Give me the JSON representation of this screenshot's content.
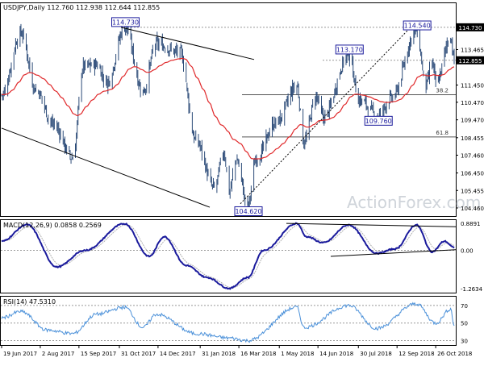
{
  "colors": {
    "background": "#ffffff",
    "candles": "#2c4b78",
    "ema": "#e0282a",
    "trendline": "#000000",
    "fibline": "#555555",
    "macd": "#1a1a9c",
    "signal": "#b0b0b0",
    "rsi": "#4a90d9",
    "grid": "#9a9a9a",
    "price_marker_bg": "#000000"
  },
  "watermark": "ActionForex.com",
  "chart_data": [
    {
      "type": "candlestick",
      "title": "USDJPY,Daily  112.760 112.938 112.644 112.855",
      "symbol": "USDJPY",
      "timeframe": "Daily",
      "ohlc_last": {
        "open": 112.76,
        "high": 112.938,
        "low": 112.644,
        "close": 112.855
      },
      "ylim": [
        104.0,
        116.1
      ],
      "yticks": [
        "114.730",
        "113.465",
        "112.855",
        "111.450",
        "110.470",
        "109.470",
        "108.455",
        "107.460",
        "106.450",
        "105.455",
        "104.460"
      ],
      "current_price": "112.855",
      "current_high_marker": "114.730",
      "annotations": [
        {
          "label": "114.730",
          "value": 114.73,
          "date": "2017-11-06"
        },
        {
          "label": "104.620",
          "value": 104.62,
          "date": "2018-03-26"
        },
        {
          "label": "113.170",
          "value": 113.17,
          "date": "2018-07-19"
        },
        {
          "label": "109.760",
          "value": 109.76,
          "date": "2018-08-21"
        },
        {
          "label": "114.540",
          "value": 114.54,
          "date": "2018-10-04"
        }
      ],
      "fib_levels": [
        {
          "label": "38.2",
          "value": 110.9
        },
        {
          "label": "61.8",
          "value": 108.5
        }
      ],
      "key_points": [
        [
          "2017-06-19",
          110.9
        ],
        [
          "2017-07-11",
          114.4
        ],
        [
          "2017-07-28",
          111.2
        ],
        [
          "2017-08-17",
          109.2
        ],
        [
          "2017-09-08",
          107.3
        ],
        [
          "2017-09-20",
          112.5
        ],
        [
          "2017-10-05",
          112.6
        ],
        [
          "2017-10-17",
          111.6
        ],
        [
          "2017-11-06",
          114.73
        ],
        [
          "2017-11-27",
          111.1
        ],
        [
          "2017-12-12",
          113.8
        ],
        [
          "2018-01-08",
          113.3
        ],
        [
          "2018-01-26",
          108.3
        ],
        [
          "2018-02-16",
          105.6
        ],
        [
          "2018-02-27",
          107.6
        ],
        [
          "2018-03-05",
          105.4
        ],
        [
          "2018-03-13",
          107.2
        ],
        [
          "2018-03-26",
          104.62
        ],
        [
          "2018-04-05",
          107.3
        ],
        [
          "2018-04-27",
          109.3
        ],
        [
          "2018-05-21",
          111.4
        ],
        [
          "2018-05-29",
          108.2
        ],
        [
          "2018-06-12",
          110.8
        ],
        [
          "2018-06-20",
          109.6
        ],
        [
          "2018-07-19",
          113.17
        ],
        [
          "2018-07-31",
          110.6
        ],
        [
          "2018-08-21",
          109.76
        ],
        [
          "2018-09-06",
          110.7
        ],
        [
          "2018-10-04",
          114.54
        ],
        [
          "2018-10-15",
          111.4
        ],
        [
          "2018-10-22",
          112.8
        ],
        [
          "2018-10-26",
          111.5
        ],
        [
          "2018-11-12",
          114.2
        ],
        [
          "2018-11-16",
          112.855
        ]
      ]
    },
    {
      "type": "line",
      "title": "MACD(12,26,9)  0.0858  0.2569",
      "name": "MACD(12,26,9)",
      "values_last": {
        "macd": 0.0858,
        "signal": 0.2569
      },
      "ylim": [
        -1.4,
        1.0
      ],
      "yticks": [
        "0.8891",
        "0.00",
        "-1.2634"
      ],
      "key_points": [
        [
          "2017-06-19",
          0.3
        ],
        [
          "2017-07-18",
          0.85
        ],
        [
          "2017-08-21",
          -0.55
        ],
        [
          "2017-09-22",
          0.0
        ],
        [
          "2017-11-06",
          0.88
        ],
        [
          "2017-12-04",
          -0.2
        ],
        [
          "2017-12-21",
          0.45
        ],
        [
          "2018-01-15",
          -0.5
        ],
        [
          "2018-02-08",
          -0.9
        ],
        [
          "2018-03-05",
          -1.26
        ],
        [
          "2018-03-26",
          -0.9
        ],
        [
          "2018-04-13",
          0.0
        ],
        [
          "2018-05-21",
          0.89
        ],
        [
          "2018-06-01",
          0.45
        ],
        [
          "2018-06-20",
          0.25
        ],
        [
          "2018-07-19",
          0.84
        ],
        [
          "2018-08-20",
          -0.1
        ],
        [
          "2018-09-10",
          0.05
        ],
        [
          "2018-10-04",
          0.84
        ],
        [
          "2018-10-22",
          -0.05
        ],
        [
          "2018-11-05",
          0.3
        ],
        [
          "2018-11-16",
          0.09
        ]
      ]
    },
    {
      "type": "line",
      "title": "RSI(14)  47.5310",
      "name": "RSI(14)",
      "value_last": 47.531,
      "ylim": [
        25,
        80
      ],
      "yticks": [
        "70",
        "50",
        "30"
      ],
      "levels": [
        70,
        50,
        30
      ],
      "key_points": [
        [
          "2017-06-19",
          56
        ],
        [
          "2017-07-11",
          63
        ],
        [
          "2017-08-10",
          42
        ],
        [
          "2017-09-08",
          38
        ],
        [
          "2017-10-05",
          60
        ],
        [
          "2017-11-06",
          68
        ],
        [
          "2017-11-27",
          45
        ],
        [
          "2017-12-12",
          60
        ],
        [
          "2018-01-26",
          38
        ],
        [
          "2018-03-05",
          33
        ],
        [
          "2018-03-26",
          30
        ],
        [
          "2018-05-21",
          68
        ],
        [
          "2018-05-29",
          45
        ],
        [
          "2018-07-19",
          70
        ],
        [
          "2018-08-20",
          44
        ],
        [
          "2018-10-04",
          72
        ],
        [
          "2018-10-26",
          50
        ],
        [
          "2018-11-12",
          66
        ],
        [
          "2018-11-16",
          47.531
        ]
      ]
    }
  ],
  "xaxis": {
    "labels": [
      "19 Jun 2017",
      "2 Aug 2017",
      "15 Sep 2017",
      "31 Oct 2017",
      "14 Dec 2017",
      "31 Jan 2018",
      "16 Mar 2018",
      "1 May 2018",
      "14 Jun 2018",
      "30 Jul 2018",
      "12 Sep 2018",
      "26 Oct 2018"
    ],
    "dates": [
      "2017-06-19",
      "2017-08-02",
      "2017-09-15",
      "2017-10-31",
      "2017-12-14",
      "2018-01-31",
      "2018-03-16",
      "2018-05-01",
      "2018-06-14",
      "2018-07-30",
      "2018-09-12",
      "2018-10-26"
    ]
  }
}
